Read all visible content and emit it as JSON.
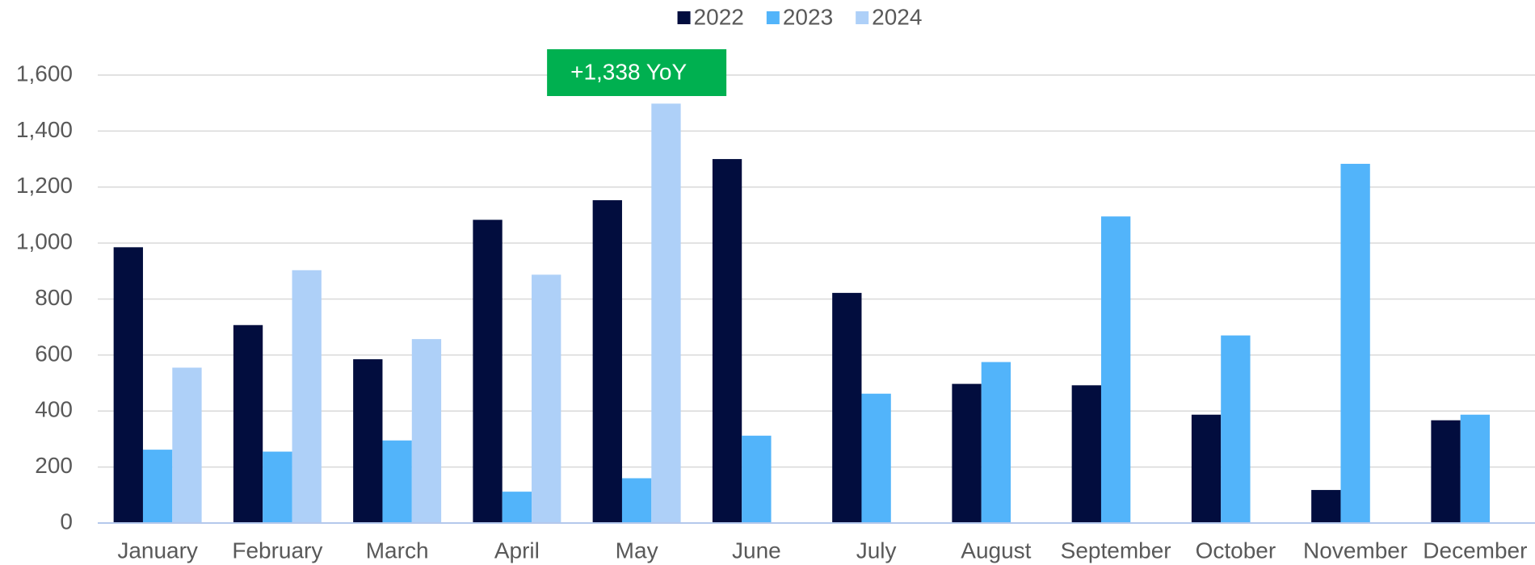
{
  "chart_data": {
    "type": "bar",
    "categories": [
      "January",
      "February",
      "March",
      "April",
      "May",
      "June",
      "July",
      "August",
      "September",
      "October",
      "November",
      "December"
    ],
    "series": [
      {
        "name": "2022",
        "color": "#020d3e",
        "values": [
          985,
          707,
          585,
          1083,
          1153,
          1300,
          822,
          497,
          492,
          387,
          118,
          367
        ]
      },
      {
        "name": "2023",
        "color": "#52b4fa",
        "values": [
          262,
          255,
          295,
          112,
          160,
          312,
          462,
          575,
          1095,
          670,
          1283,
          387
        ]
      },
      {
        "name": "2024",
        "color": "#aed0f8",
        "values": [
          555,
          903,
          657,
          887,
          1498,
          null,
          null,
          null,
          null,
          null,
          null,
          null
        ]
      }
    ],
    "ylim": [
      0,
      1600
    ],
    "yticks": [
      0,
      200,
      400,
      600,
      800,
      {
        "value": 1000,
        "label": "1,000"
      },
      {
        "value": 1200,
        "label": "1,200"
      },
      {
        "value": 1400,
        "label": "1,400"
      },
      {
        "value": 1600,
        "label": "1,600"
      }
    ],
    "grid": true,
    "legend": "top",
    "annotation": {
      "text": "+1,338 YoY",
      "category": 4,
      "color": "#00b050"
    }
  }
}
